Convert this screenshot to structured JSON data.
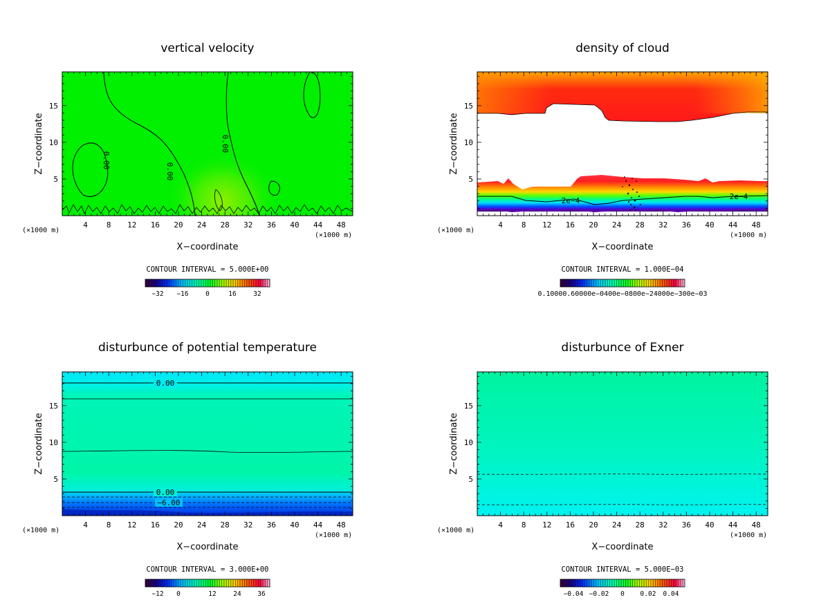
{
  "chart_data": [
    {
      "type": "heatmap",
      "id": "vv",
      "title": "vertical velocity",
      "xlabel": "X−coordinate",
      "ylabel": "Z−coordinate",
      "x_unit_left": "(×1000 m)",
      "x_unit_right": "(×1000 m)",
      "xlim": [
        0,
        50
      ],
      "ylim": [
        0,
        19.6
      ],
      "xticks": [
        "4",
        "8",
        "12",
        "16",
        "20",
        "24",
        "28",
        "32",
        "36",
        "40",
        "44",
        "48"
      ],
      "yticks": [
        "5",
        "10",
        "15"
      ],
      "contour_interval": "CONTOUR INTERVAL = 5.000E+00",
      "colorbar_labels": [
        "−32",
        "−16",
        "0",
        "16",
        "32"
      ],
      "contour_labels": [
        "0.00",
        "0.00"
      ],
      "fill": "mostly near zero (green), slight positive updraft near x≈26"
    },
    {
      "type": "heatmap",
      "id": "dc",
      "title": "density of cloud",
      "xlabel": "X−coordinate",
      "ylabel": "Z−coordinate",
      "x_unit_left": "(×1000 m)",
      "x_unit_right": "(×1000 m)",
      "xlim": [
        0,
        50
      ],
      "ylim": [
        0,
        19.6
      ],
      "xticks": [
        "4",
        "8",
        "12",
        "16",
        "20",
        "24",
        "28",
        "32",
        "36",
        "40",
        "44",
        "48"
      ],
      "yticks": [
        "5",
        "10",
        "15"
      ],
      "contour_interval": "CONTOUR INTERVAL = 1.000E−04",
      "colorbar_labels": [
        "0.10000.60000e−0400e−0800e−24000e−300e−03"
      ],
      "contour_labels": [
        "2e−4",
        "2e−4"
      ],
      "fill": "cloud layer z 13–19.6 (orange/red), empty mid layer, low cloud z 0.5–5.5 (red to violet)"
    },
    {
      "type": "heatmap",
      "id": "pt",
      "title": "disturbunce of potential temperature",
      "xlabel": "X−coordinate",
      "ylabel": "Z−coordinate",
      "x_unit_left": "(×1000 m)",
      "x_unit_right": "(×1000 m)",
      "xlim": [
        0,
        50
      ],
      "ylim": [
        0,
        19.6
      ],
      "xticks": [
        "4",
        "8",
        "12",
        "16",
        "20",
        "24",
        "28",
        "32",
        "36",
        "40",
        "44",
        "48"
      ],
      "yticks": [
        "5",
        "10",
        "15"
      ],
      "contour_interval": "CONTOUR INTERVAL = 3.000E+00",
      "colorbar_labels": [
        "−12",
        "0",
        "12",
        "24",
        "36"
      ],
      "contour_labels": [
        "0.00",
        "0.00",
        "−6.00"
      ],
      "fill": "horizontally stratified, negative near surface"
    },
    {
      "type": "heatmap",
      "id": "ex",
      "title": "disturbunce of Exner",
      "xlabel": "X−coordinate",
      "ylabel": "Z−coordinate",
      "x_unit_left": "(×1000 m)",
      "x_unit_right": "(×1000 m)",
      "xlim": [
        0,
        50
      ],
      "ylim": [
        0,
        19.6
      ],
      "xticks": [
        "4",
        "8",
        "12",
        "16",
        "20",
        "24",
        "28",
        "32",
        "36",
        "40",
        "44",
        "48"
      ],
      "yticks": [
        "5",
        "10",
        "15"
      ],
      "contour_interval": "CONTOUR INTERVAL = 5.000E−03",
      "colorbar_labels": [
        "−0.04",
        "−0.02",
        "0",
        "0.02",
        "0.04"
      ],
      "contour_labels": [],
      "fill": "smooth vertical gradient, near zero, dashed contours at low levels"
    }
  ],
  "colors": {
    "green": "#00f000",
    "spring": "#00ff99",
    "cyan": "#00f7ee",
    "cloud_red": "#ff1a1a",
    "cloud_orange": "#ffa000"
  }
}
